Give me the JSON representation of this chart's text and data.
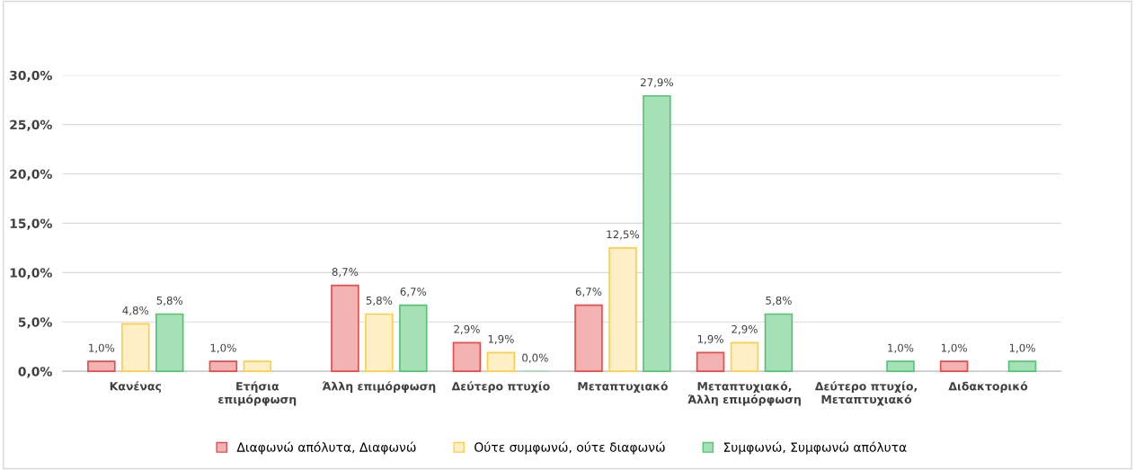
{
  "chart_data": {
    "type": "bar",
    "categories": [
      "Κανένας",
      "Ετήσια\nεπιμόρφωση",
      "Άλλη επιμόρφωση",
      "Δεύτερο πτυχίο",
      "Μεταπτυχιακό",
      "Μεταπτυχιακό,\nΆλλη επιμόρφωση",
      "Δεύτερο πτυχίο,\nΜεταπτυχιακό",
      "Διδακτορικό"
    ],
    "series": [
      {
        "name": "Διαφωνώ απόλυτα, Διαφωνώ",
        "color": "#f4b3b3",
        "values": [
          1.0,
          1.0,
          8.7,
          2.9,
          6.7,
          1.9,
          null,
          1.0
        ],
        "value_labels": [
          "1,0%",
          "1,0%",
          "8,7%",
          "2,9%",
          "6,7%",
          "1,9%",
          null,
          "1,0%"
        ]
      },
      {
        "name": "Ούτε συμφωνώ, ούτε διαφωνώ",
        "color": "#fff0c8",
        "values": [
          4.8,
          1.0,
          5.8,
          1.9,
          12.5,
          2.9,
          null,
          null
        ],
        "value_labels": [
          "4,8%",
          null,
          "5,8%",
          "1,9%",
          "12,5%",
          "2,9%",
          null,
          null
        ]
      },
      {
        "name": "Συμφωνώ, Συμφωνώ απόλυτα",
        "color": "#a6e0b6",
        "values": [
          5.8,
          null,
          6.7,
          0.0,
          27.9,
          5.8,
          1.0,
          1.0
        ],
        "value_labels": [
          "5,8%",
          null,
          "6,7%",
          "0,0%",
          "27,9%",
          "5,8%",
          "1,0%",
          "1,0%"
        ]
      }
    ],
    "ylim": [
      0,
      30
    ],
    "yticks": [
      {
        "value": 0,
        "label": "0,0%"
      },
      {
        "value": 5,
        "label": "5,0%"
      },
      {
        "value": 10,
        "label": "10,0%"
      },
      {
        "value": 15,
        "label": "15,0%"
      },
      {
        "value": 20,
        "label": "20,0%"
      },
      {
        "value": 25,
        "label": "25,0%"
      },
      {
        "value": 30,
        "label": "30,0%"
      }
    ],
    "grid": "y",
    "legend": "bottom"
  }
}
